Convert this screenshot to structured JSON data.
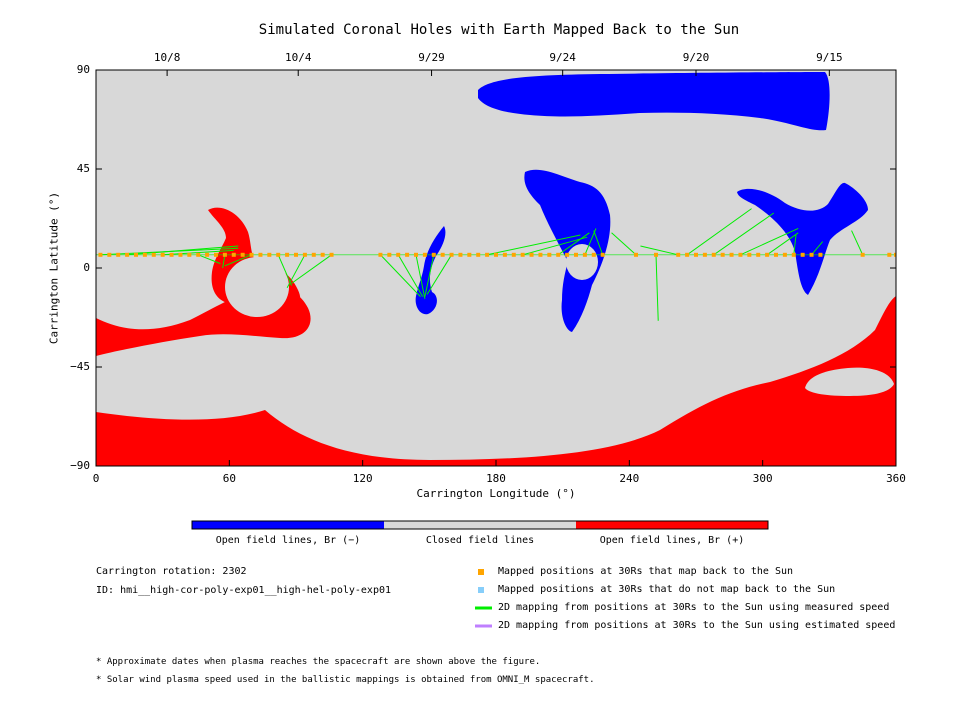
{
  "chart_data": {
    "type": "map",
    "title": "Simulated Coronal Holes with Earth Mapped Back to the Sun",
    "xlabel": "Carrington Longitude (°)",
    "ylabel": "Carrington Latitude (°)",
    "xlim": [
      0,
      360
    ],
    "ylim": [
      -90,
      90
    ],
    "xticks": [
      0,
      60,
      120,
      180,
      240,
      300,
      360
    ],
    "yticks": [
      90,
      45,
      0,
      -45,
      -90
    ],
    "date_ticks": [
      {
        "label": "10/8",
        "lon": 32
      },
      {
        "label": "10/4",
        "lon": 91
      },
      {
        "label": "9/29",
        "lon": 151
      },
      {
        "label": "9/24",
        "lon": 210
      },
      {
        "label": "9/20",
        "lon": 270
      },
      {
        "label": "9/15",
        "lon": 330
      }
    ],
    "colors": {
      "closed": "#d8d8d8",
      "negative": "#0000ff",
      "positive": "#ff0000",
      "mapped": "#ffa500",
      "unmapped": "#87cefa",
      "measured": "#00ee00",
      "estimated": "#bf7fff"
    },
    "spacecraft_lat": 6,
    "mapped_lons": [
      2,
      6,
      10,
      14,
      18,
      22,
      26,
      30,
      34,
      38,
      42,
      46,
      50,
      54,
      58,
      62,
      66,
      70,
      74,
      78,
      82,
      86,
      90,
      94,
      98,
      102,
      106,
      128,
      132,
      136,
      140,
      144,
      148,
      152,
      156,
      160,
      164,
      168,
      172,
      176,
      180,
      184,
      188,
      192,
      196,
      200,
      204,
      208,
      212,
      216,
      220,
      224,
      228,
      243,
      252,
      262,
      266,
      270,
      274,
      278,
      282,
      286,
      290,
      294,
      298,
      302,
      306,
      310,
      314,
      318,
      322,
      326,
      345,
      357,
      360
    ],
    "mapping_lines": [
      {
        "from": [
          2,
          6
        ],
        "to": [
          64,
          9
        ]
      },
      {
        "from": [
          14,
          6
        ],
        "to": [
          64,
          10
        ]
      },
      {
        "from": [
          30,
          6
        ],
        "to": [
          62,
          8
        ]
      },
      {
        "from": [
          46,
          6
        ],
        "to": [
          56,
          2
        ]
      },
      {
        "from": [
          58,
          6
        ],
        "to": [
          57,
          0
        ]
      },
      {
        "from": [
          70,
          6
        ],
        "to": [
          58,
          1
        ]
      },
      {
        "from": [
          82,
          6
        ],
        "to": [
          88,
          -8
        ]
      },
      {
        "from": [
          94,
          6
        ],
        "to": [
          86,
          -9
        ]
      },
      {
        "from": [
          106,
          6
        ],
        "to": [
          88,
          -7
        ]
      },
      {
        "from": [
          128,
          6
        ],
        "to": [
          146,
          -13
        ]
      },
      {
        "from": [
          136,
          6
        ],
        "to": [
          147,
          -13
        ]
      },
      {
        "from": [
          144,
          6
        ],
        "to": [
          148,
          -14
        ]
      },
      {
        "from": [
          152,
          6
        ],
        "to": [
          148,
          -13
        ]
      },
      {
        "from": [
          160,
          6
        ],
        "to": [
          149,
          -12
        ]
      },
      {
        "from": [
          176,
          6
        ],
        "to": [
          218,
          15
        ]
      },
      {
        "from": [
          192,
          6
        ],
        "to": [
          221,
          14
        ]
      },
      {
        "from": [
          208,
          6
        ],
        "to": [
          222,
          16
        ]
      },
      {
        "from": [
          220,
          6
        ],
        "to": [
          225,
          18
        ]
      },
      {
        "from": [
          228,
          6
        ],
        "to": [
          224,
          17
        ]
      },
      {
        "from": [
          243,
          6
        ],
        "to": [
          232,
          16
        ]
      },
      {
        "from": [
          252,
          6
        ],
        "to": [
          253,
          -24
        ]
      },
      {
        "from": [
          262,
          6
        ],
        "to": [
          245,
          10
        ]
      },
      {
        "from": [
          266,
          6
        ],
        "to": [
          295,
          27
        ]
      },
      {
        "from": [
          278,
          6
        ],
        "to": [
          305,
          25
        ]
      },
      {
        "from": [
          290,
          6
        ],
        "to": [
          316,
          18
        ]
      },
      {
        "from": [
          302,
          6
        ],
        "to": [
          316,
          16
        ]
      },
      {
        "from": [
          314,
          6
        ],
        "to": [
          315,
          15
        ]
      },
      {
        "from": [
          322,
          6
        ],
        "to": [
          327,
          12
        ]
      },
      {
        "from": [
          345,
          6
        ],
        "to": [
          340,
          17
        ]
      }
    ]
  },
  "colorbar": {
    "labels": [
      "Open field lines, Br (−)",
      "Closed field lines",
      "Open field lines, Br (+)"
    ]
  },
  "info": {
    "rotation": "Carrington rotation: 2302",
    "id": "ID: hmi__high-cor-poly-exp01__high-hel-poly-exp01"
  },
  "legend": [
    {
      "label": "Mapped positions at 30Rs that map back to the Sun"
    },
    {
      "label": "Mapped positions at 30Rs that do not map back to the Sun"
    },
    {
      "label": "2D mapping from positions at 30Rs to the Sun using measured speed"
    },
    {
      "label": "2D mapping from positions at 30Rs to the Sun using estimated speed"
    }
  ],
  "notes": [
    "* Approximate dates when plasma reaches the spacecraft are shown above the figure.",
    "* Solar wind plasma speed used in the ballistic mappings is obtained from OMNI_M spacecraft."
  ]
}
